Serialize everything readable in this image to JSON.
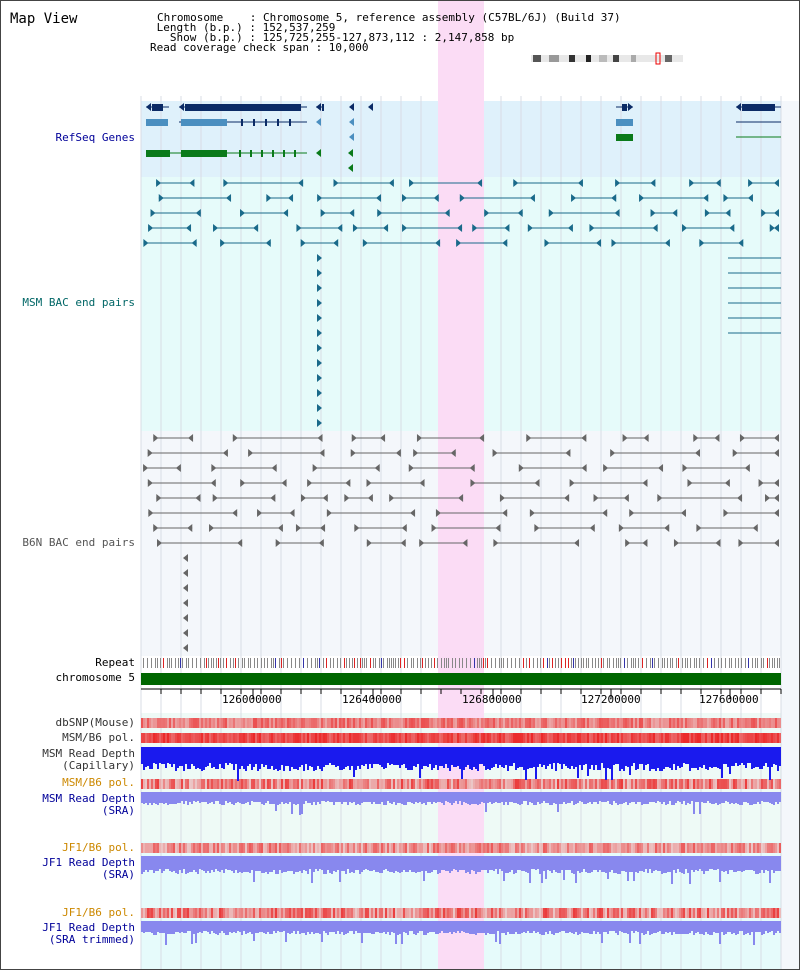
{
  "view": {
    "title": "Map View",
    "info": [
      {
        "key": "Chromosome",
        "value": "Chromosome 5, reference assembly (C57BL/6J) (Build 37)"
      },
      {
        "key": "Length (b.p.)",
        "value": "152,537,259"
      },
      {
        "key": "Show (b.p.)",
        "value": "125,725,255-127,873,112 : 2,147,858 bp"
      },
      {
        "key": "Read coverage check span",
        "value": "10,000"
      }
    ],
    "info_lines": [
      "Chromosome    : Chromosome 5, reference assembly (C57BL/6J) (Build 37)",
      " Length (b.p.) : 152,537,259",
      "   Show (b.p.) : 125,725,255-127,873,112 : 2,147,858 bp",
      "Read coverage check span : 10,000"
    ]
  },
  "tracks": {
    "refseq": {
      "label": "RefSeq Genes",
      "color": "#000099"
    },
    "msm_bac": {
      "label": "MSM BAC end pairs",
      "color": "#006666"
    },
    "b6n_bac": {
      "label": "B6N BAC end pairs",
      "color": "#555555"
    },
    "repeat": {
      "label": "Repeat"
    },
    "chromosome": {
      "label": "chromosome 5",
      "bar_color": "#006600"
    },
    "axis_ticks": [
      "126000000",
      "126400000",
      "126800000",
      "127200000",
      "127600000"
    ],
    "dbsnp": {
      "label": "dbSNP(Mouse)",
      "color": "#333333"
    },
    "msm_b6_pol_1": {
      "label": "MSM/B6 pol.",
      "color": "#333333"
    },
    "msm_depth_cap": {
      "label": "MSM Read Depth",
      "sub": "(Capillary)",
      "color": "#333333"
    },
    "msm_b6_pol_2": {
      "label": "MSM/B6 pol.",
      "color": "#cc8800"
    },
    "msm_depth_sra": {
      "label": "MSM Read Depth",
      "sub": "(SRA)",
      "color": "#000099"
    },
    "jf1_b6_pol_1": {
      "label": "JF1/B6 pol.",
      "color": "#cc8800"
    },
    "jf1_depth_sra": {
      "label": "JF1 Read Depth",
      "sub": "(SRA)",
      "color": "#000099"
    },
    "jf1_b6_pol_2": {
      "label": "JF1/B6 pol.",
      "color": "#cc8800"
    },
    "jf1_depth_trim": {
      "label": "JF1 Read Depth",
      "sub": "(SRA trimmed)",
      "color": "#000099"
    }
  },
  "colors": {
    "refseq_bg": "#dff1fb",
    "msm_bg": "#e6fbfa",
    "b6n_bg": "#f4f7fb",
    "highlight": "#fbdcf5",
    "gene_dark": "#0b2b66",
    "gene_mid": "#4b8fc0",
    "gene_green": "#0a7a1a",
    "msm_pair": "#1a6a8a",
    "b6n_pair": "#666666",
    "snp_red": "#ee3333",
    "depth_blue": "#1a1aee",
    "depth_light": "#8888ee"
  }
}
